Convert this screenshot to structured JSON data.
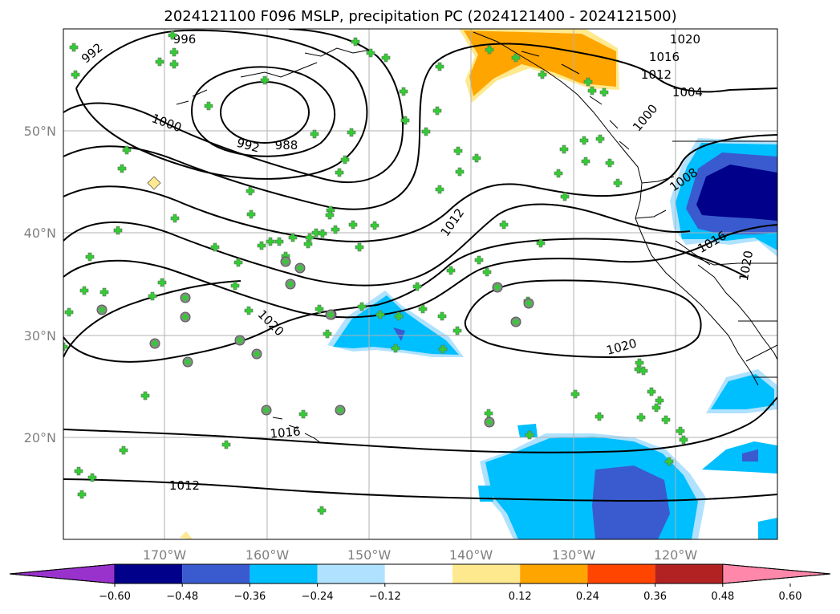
{
  "title": "2024121100 F096 MSLP, precipitation PC (2024121400 - 2024121500)",
  "lat_labels": [
    "50°N",
    "40°N",
    "30°N",
    "20°N"
  ],
  "lon_labels": [
    "170°W",
    "160°W",
    "150°W",
    "140°W",
    "130°W",
    "120°W"
  ],
  "isobar_labels": [
    "996",
    "992",
    "1000",
    "992",
    "988",
    "1020",
    "1016",
    "1012",
    "1004",
    "1000",
    "1008",
    "1012",
    "1016",
    "1020",
    "1020",
    "1020",
    "1016",
    "1012"
  ],
  "colorbar": {
    "ticks": [
      "−0.60",
      "−0.48",
      "−0.36",
      "−0.24",
      "−0.12",
      "0.12",
      "0.24",
      "0.36",
      "0.48",
      "0.60"
    ],
    "colors": [
      "#9932cc",
      "#00008b",
      "#3a5bcf",
      "#00bfff",
      "#b0e2ff",
      "#ffffff",
      "#ffe98f",
      "#ffa500",
      "#ff4500",
      "#b22222",
      "#ff88aa"
    ]
  },
  "colors": {
    "marker_plus": "#33cc33",
    "marker_circle": "#33cc33"
  }
}
